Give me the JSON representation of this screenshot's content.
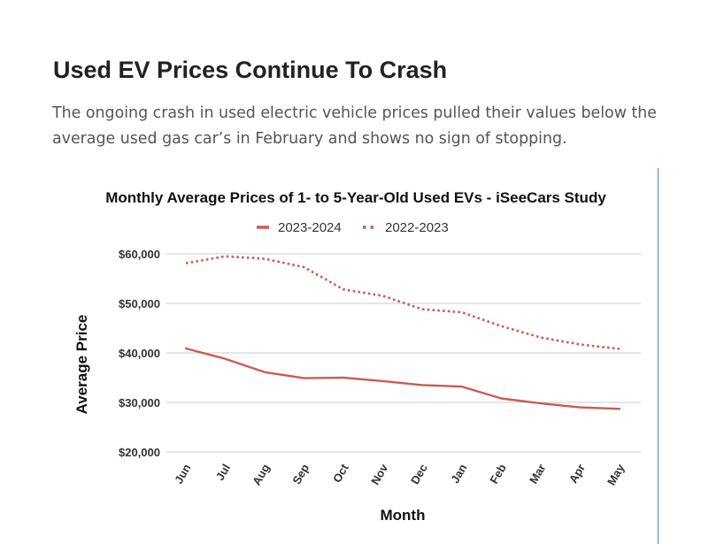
{
  "article": {
    "title": "Used EV Prices Continue To Crash",
    "lede": "The ongoing crash in used electric vehicle prices pulled their values below the average used gas car’s in February and shows no sign of stopping."
  },
  "colors": {
    "series": "#cc5b55",
    "grid": "#cccccc",
    "divider": "#4a86c8"
  },
  "chart_data": {
    "type": "line",
    "title": "Monthly Average Prices of 1- to 5-Year-Old Used EVs - iSeeCars Study",
    "xlabel": "Month",
    "ylabel": "Average Price",
    "legend_position": "top-center",
    "grid": true,
    "ylim": [
      20000,
      60000
    ],
    "yticks": [
      20000,
      30000,
      40000,
      50000,
      60000
    ],
    "ytick_labels": [
      "$20,000",
      "$30,000",
      "$40,000",
      "$50,000",
      "$60,000"
    ],
    "categories": [
      "Jun",
      "Jul",
      "Aug",
      "Sep",
      "Oct",
      "Nov",
      "Dec",
      "Jan",
      "Feb",
      "Mar",
      "Apr",
      "May"
    ],
    "series": [
      {
        "name": "2023-2024",
        "style": "solid",
        "values": [
          40900,
          38800,
          36100,
          34900,
          35000,
          34300,
          33500,
          33200,
          30800,
          29800,
          29000,
          28700
        ]
      },
      {
        "name": "2022-2023",
        "style": "dotted",
        "values": [
          58100,
          59500,
          59000,
          57300,
          52800,
          51500,
          48800,
          48200,
          45400,
          43100,
          41700,
          40800
        ]
      }
    ]
  }
}
